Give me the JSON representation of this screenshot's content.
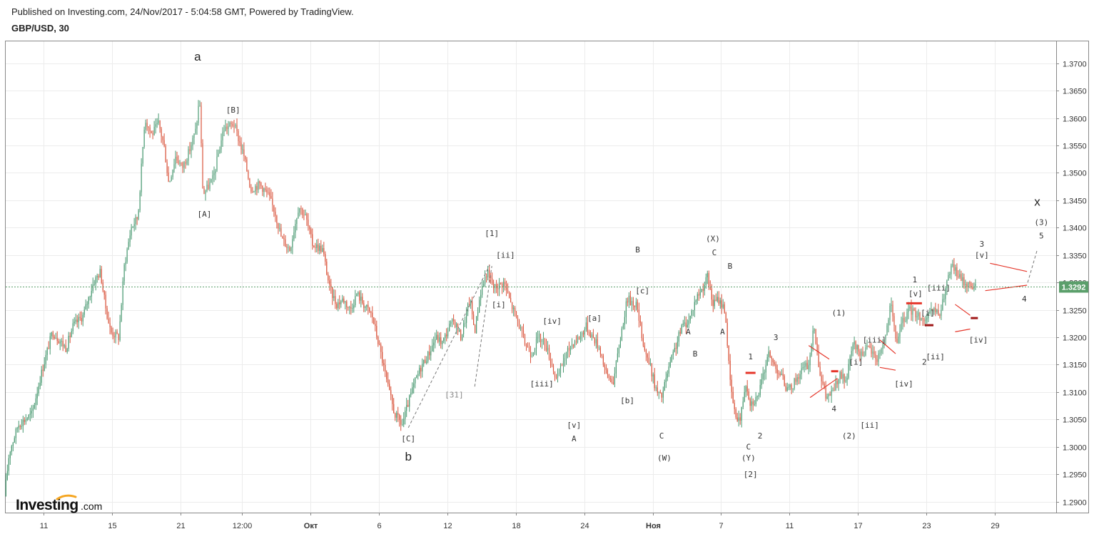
{
  "header": {
    "published": "Published on Investing.com, 24/Nov/2017 - 5:04:58 GMT, Powered by TradingView.",
    "symbol": "GBP/USD, 30"
  },
  "logo": {
    "main": "Investing",
    "domain": ".com"
  },
  "colors": {
    "up": "#4a9a72",
    "down": "#d9533b",
    "grid": "#ececec",
    "last_price": "#5b9f6b",
    "annotation": "#e5362a",
    "dashed": "#777777"
  },
  "chart_data": {
    "type": "candlestick",
    "symbol": "GBP/USD",
    "interval": "30",
    "y_ticks": [
      "1.3700",
      "1.3650",
      "1.3600",
      "1.3550",
      "1.3500",
      "1.3450",
      "1.3400",
      "1.3350",
      "1.3300",
      "1.3250",
      "1.3200",
      "1.3150",
      "1.3100",
      "1.3050",
      "1.3000",
      "1.2950",
      "1.2900"
    ],
    "ylim": [
      1.288,
      1.374
    ],
    "last_price": {
      "label": "1.3292",
      "value": 1.3292
    },
    "x_ticks": [
      {
        "label": "11",
        "i": 0.6,
        "bold": false
      },
      {
        "label": "15",
        "i": 1.6,
        "bold": false
      },
      {
        "label": "21",
        "i": 2.6,
        "bold": false
      },
      {
        "label": "12:00",
        "i": 3.5,
        "bold": false
      },
      {
        "label": "Окт",
        "i": 4.5,
        "bold": true
      },
      {
        "label": "6",
        "i": 5.5,
        "bold": false
      },
      {
        "label": "12",
        "i": 6.5,
        "bold": false
      },
      {
        "label": "18",
        "i": 7.5,
        "bold": false
      },
      {
        "label": "24",
        "i": 8.5,
        "bold": false
      },
      {
        "label": "Ноя",
        "i": 9.5,
        "bold": true
      },
      {
        "label": "7",
        "i": 10.5,
        "bold": false
      },
      {
        "label": "11",
        "i": 11.5,
        "bold": false
      },
      {
        "label": "17",
        "i": 12.5,
        "bold": false
      },
      {
        "label": "23",
        "i": 13.5,
        "bold": false
      },
      {
        "label": "29",
        "i": 14.5,
        "bold": false
      }
    ],
    "price_path": [
      [
        0.05,
        1.291
      ],
      [
        0.12,
        1.299
      ],
      [
        0.25,
        1.304
      ],
      [
        0.45,
        1.306
      ],
      [
        0.6,
        1.314
      ],
      [
        0.75,
        1.321
      ],
      [
        0.95,
        1.318
      ],
      [
        1.05,
        1.322
      ],
      [
        1.2,
        1.324
      ],
      [
        1.35,
        1.33
      ],
      [
        1.45,
        1.332
      ],
      [
        1.52,
        1.326
      ],
      [
        1.6,
        1.321
      ],
      [
        1.72,
        1.32
      ],
      [
        1.8,
        1.333
      ],
      [
        1.9,
        1.34
      ],
      [
        2.0,
        1.342
      ],
      [
        2.1,
        1.36
      ],
      [
        2.2,
        1.357
      ],
      [
        2.3,
        1.359
      ],
      [
        2.38,
        1.355
      ],
      [
        2.45,
        1.348
      ],
      [
        2.55,
        1.353
      ],
      [
        2.65,
        1.351
      ],
      [
        2.75,
        1.354
      ],
      [
        2.85,
        1.358
      ],
      [
        2.9,
        1.364
      ],
      [
        2.95,
        1.346
      ],
      [
        3.1,
        1.349
      ],
      [
        3.25,
        1.358
      ],
      [
        3.4,
        1.359
      ],
      [
        3.55,
        1.353
      ],
      [
        3.65,
        1.347
      ],
      [
        3.78,
        1.348
      ],
      [
        3.9,
        1.346
      ],
      [
        4.0,
        1.343
      ],
      [
        4.1,
        1.338
      ],
      [
        4.22,
        1.336
      ],
      [
        4.35,
        1.344
      ],
      [
        4.45,
        1.342
      ],
      [
        4.55,
        1.337
      ],
      [
        4.7,
        1.336
      ],
      [
        4.8,
        1.329
      ],
      [
        4.9,
        1.326
      ],
      [
        5.0,
        1.327
      ],
      [
        5.1,
        1.325
      ],
      [
        5.2,
        1.328
      ],
      [
        5.3,
        1.326
      ],
      [
        5.42,
        1.324
      ],
      [
        5.55,
        1.317
      ],
      [
        5.65,
        1.311
      ],
      [
        5.75,
        1.306
      ],
      [
        5.86,
        1.304
      ],
      [
        5.95,
        1.308
      ],
      [
        6.05,
        1.312
      ],
      [
        6.15,
        1.315
      ],
      [
        6.25,
        1.317
      ],
      [
        6.35,
        1.32
      ],
      [
        6.45,
        1.319
      ],
      [
        6.55,
        1.322
      ],
      [
        6.62,
        1.323
      ],
      [
        6.72,
        1.32
      ],
      [
        6.85,
        1.327
      ],
      [
        6.92,
        1.321
      ],
      [
        7.0,
        1.328
      ],
      [
        7.1,
        1.332
      ],
      [
        7.2,
        1.329
      ],
      [
        7.35,
        1.33
      ],
      [
        7.45,
        1.326
      ],
      [
        7.55,
        1.323
      ],
      [
        7.65,
        1.319
      ],
      [
        7.75,
        1.317
      ],
      [
        7.85,
        1.32
      ],
      [
        7.95,
        1.319
      ],
      [
        8.05,
        1.315
      ],
      [
        8.12,
        1.312
      ],
      [
        8.22,
        1.316
      ],
      [
        8.35,
        1.319
      ],
      [
        8.45,
        1.32
      ],
      [
        8.55,
        1.322
      ],
      [
        8.65,
        1.32
      ],
      [
        8.75,
        1.318
      ],
      [
        8.85,
        1.313
      ],
      [
        8.95,
        1.312
      ],
      [
        9.05,
        1.32
      ],
      [
        9.15,
        1.327
      ],
      [
        9.28,
        1.326
      ],
      [
        9.4,
        1.318
      ],
      [
        9.5,
        1.314
      ],
      [
        9.58,
        1.31
      ],
      [
        9.65,
        1.309
      ],
      [
        9.75,
        1.314
      ],
      [
        9.85,
        1.318
      ],
      [
        9.95,
        1.322
      ],
      [
        10.05,
        1.323
      ],
      [
        10.15,
        1.327
      ],
      [
        10.25,
        1.329
      ],
      [
        10.32,
        1.331
      ],
      [
        10.4,
        1.326
      ],
      [
        10.48,
        1.327
      ],
      [
        10.58,
        1.325
      ],
      [
        10.65,
        1.312
      ],
      [
        10.72,
        1.306
      ],
      [
        10.8,
        1.305
      ],
      [
        10.88,
        1.312
      ],
      [
        10.95,
        1.308
      ],
      [
        11.05,
        1.309
      ],
      [
        11.12,
        1.312
      ],
      [
        11.2,
        1.317
      ],
      [
        11.3,
        1.315
      ],
      [
        11.4,
        1.313
      ],
      [
        11.5,
        1.31
      ],
      [
        11.6,
        1.312
      ],
      [
        11.7,
        1.314
      ],
      [
        11.8,
        1.315
      ],
      [
        11.88,
        1.322
      ],
      [
        11.96,
        1.314
      ],
      [
        12.05,
        1.309
      ],
      [
        12.15,
        1.31
      ],
      [
        12.25,
        1.313
      ],
      [
        12.35,
        1.312
      ],
      [
        12.45,
        1.319
      ],
      [
        12.55,
        1.317
      ],
      [
        12.68,
        1.318
      ],
      [
        12.8,
        1.316
      ],
      [
        12.92,
        1.32
      ],
      [
        13.0,
        1.326
      ],
      [
        13.08,
        1.319
      ],
      [
        13.18,
        1.323
      ],
      [
        13.28,
        1.325
      ],
      [
        13.4,
        1.324
      ],
      [
        13.52,
        1.323
      ],
      [
        13.62,
        1.325
      ],
      [
        13.72,
        1.324
      ],
      [
        13.82,
        1.33
      ],
      [
        13.9,
        1.333
      ],
      [
        14.0,
        1.331
      ],
      [
        14.08,
        1.33
      ],
      [
        14.15,
        1.3295
      ],
      [
        14.22,
        1.3292
      ]
    ]
  },
  "wave_labels": [
    {
      "text": "a",
      "i": 2.85,
      "y": 1.3705,
      "size": "big"
    },
    {
      "text": "[B]",
      "i": 3.37,
      "y": 1.361
    },
    {
      "text": "[A]",
      "i": 2.95,
      "y": 1.342
    },
    {
      "text": "[C]",
      "i": 5.93,
      "y": 1.301
    },
    {
      "text": "b",
      "i": 5.93,
      "y": 1.2975,
      "size": "big"
    },
    {
      "text": "[31]",
      "i": 6.6,
      "y": 1.309,
      "tone": "gray"
    },
    {
      "text": "[1]",
      "i": 7.15,
      "y": 1.3385
    },
    {
      "text": "[ii]",
      "i": 7.35,
      "y": 1.3345
    },
    {
      "text": "[i]",
      "i": 7.25,
      "y": 1.3255
    },
    {
      "text": "[iv]",
      "i": 8.03,
      "y": 1.3225
    },
    {
      "text": "[iii]",
      "i": 7.88,
      "y": 1.311
    },
    {
      "text": "[v]",
      "i": 8.35,
      "y": 1.3035
    },
    {
      "text": "A",
      "i": 8.35,
      "y": 1.301
    },
    {
      "text": "[a]",
      "i": 8.65,
      "y": 1.323
    },
    {
      "text": "[b]",
      "i": 9.13,
      "y": 1.308
    },
    {
      "text": "B",
      "i": 9.28,
      "y": 1.3355
    },
    {
      "text": "[c]",
      "i": 9.35,
      "y": 1.328
    },
    {
      "text": "C",
      "i": 9.63,
      "y": 1.3015
    },
    {
      "text": "(W)",
      "i": 9.67,
      "y": 1.2975
    },
    {
      "text": "A",
      "i": 10.02,
      "y": 1.3205
    },
    {
      "text": "B",
      "i": 10.12,
      "y": 1.3165
    },
    {
      "text": "A",
      "i": 10.52,
      "y": 1.3205
    },
    {
      "text": "(X)",
      "i": 10.38,
      "y": 1.3375
    },
    {
      "text": "C",
      "i": 10.4,
      "y": 1.335
    },
    {
      "text": "B",
      "i": 10.63,
      "y": 1.3325
    },
    {
      "text": "1",
      "i": 10.93,
      "y": 1.316
    },
    {
      "text": "C",
      "i": 10.9,
      "y": 1.2995
    },
    {
      "text": "(Y)",
      "i": 10.9,
      "y": 1.2975
    },
    {
      "text": "2",
      "i": 11.07,
      "y": 1.3015
    },
    {
      "text": "[2]",
      "i": 10.93,
      "y": 1.2945
    },
    {
      "text": "3",
      "i": 11.3,
      "y": 1.3195
    },
    {
      "text": "4",
      "i": 12.15,
      "y": 1.3065
    },
    {
      "text": "(1)",
      "i": 12.22,
      "y": 1.324
    },
    {
      "text": "(2)",
      "i": 12.37,
      "y": 1.3015
    },
    {
      "text": "[i]",
      "i": 12.47,
      "y": 1.315
    },
    {
      "text": "[ii]",
      "i": 12.67,
      "y": 1.3035
    },
    {
      "text": "[iii]",
      "i": 12.74,
      "y": 1.319
    },
    {
      "text": "[iv]",
      "i": 13.17,
      "y": 1.311
    },
    {
      "text": "1",
      "i": 13.33,
      "y": 1.33
    },
    {
      "text": "[v]",
      "i": 13.34,
      "y": 1.3275
    },
    {
      "text": "[iii]",
      "i": 13.68,
      "y": 1.3285
    },
    {
      "text": "[i]",
      "i": 13.52,
      "y": 1.324
    },
    {
      "text": "2",
      "i": 13.47,
      "y": 1.315
    },
    {
      "text": "[ii]",
      "i": 13.63,
      "y": 1.316
    },
    {
      "text": "3",
      "i": 14.31,
      "y": 1.3365
    },
    {
      "text": "[v]",
      "i": 14.31,
      "y": 1.3345
    },
    {
      "text": "[iv]",
      "i": 14.26,
      "y": 1.319
    },
    {
      "text": "4",
      "i": 14.93,
      "y": 1.3265
    },
    {
      "text": "x",
      "i": 15.12,
      "y": 1.344,
      "size": "big"
    },
    {
      "text": "(3)",
      "i": 15.18,
      "y": 1.3405
    },
    {
      "text": "5",
      "i": 15.18,
      "y": 1.338
    }
  ]
}
